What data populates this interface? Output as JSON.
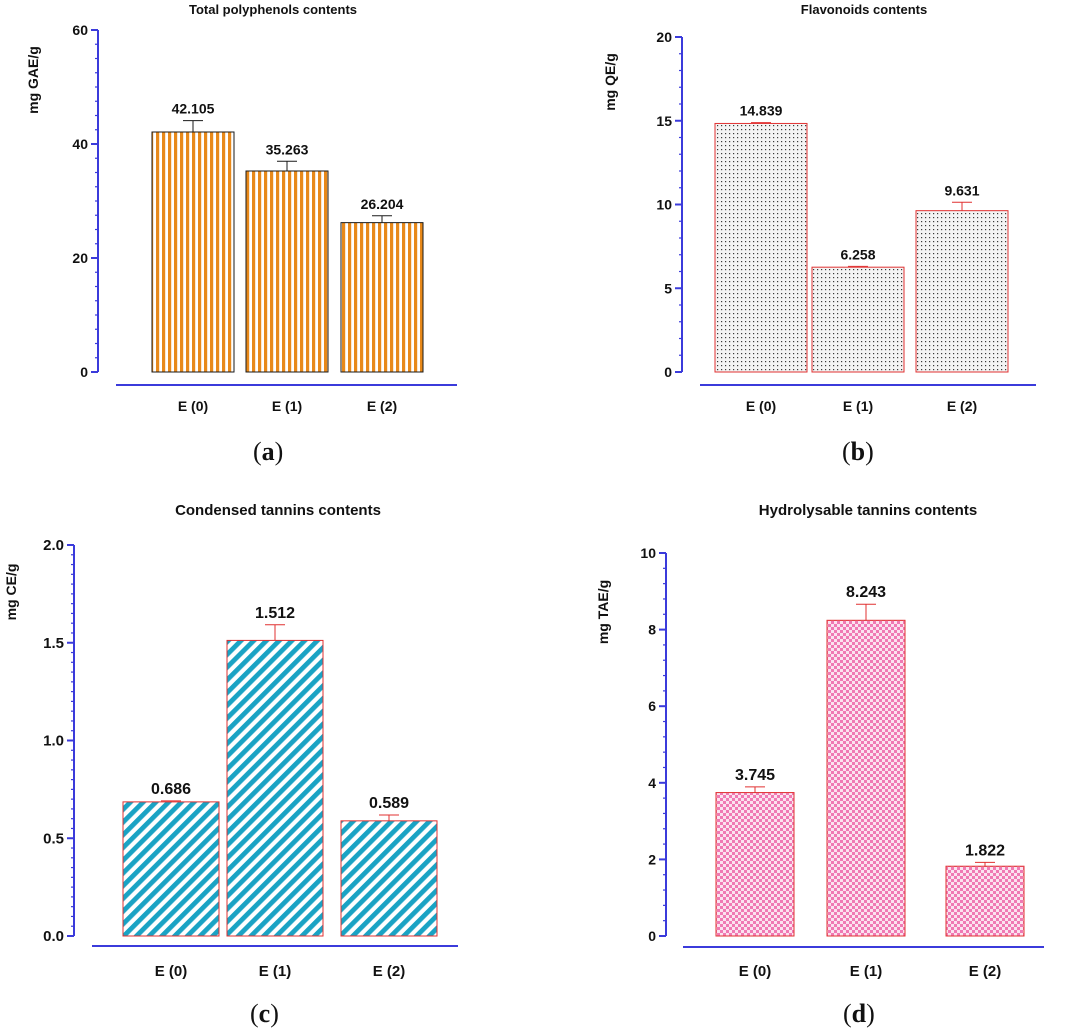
{
  "chart_data": [
    {
      "type": "bar",
      "panel": "(a)",
      "title": "Total polyphenols contents",
      "ylabel": "mg GAE/g",
      "xlabel": "",
      "categories": [
        "E (0)",
        "E (1)",
        "E (2)"
      ],
      "values": [
        42.105,
        35.263,
        26.204
      ],
      "value_labels": [
        "42.105",
        "35.263",
        "26.204"
      ],
      "errors": [
        2.0,
        1.7,
        1.2
      ],
      "ylim": [
        0,
        60
      ],
      "yticks": [
        0,
        20,
        40,
        60
      ],
      "ytick_labels": [
        "0",
        "20",
        "40",
        "60"
      ],
      "grid": false,
      "pattern": "vertical-stripes",
      "colors": {
        "fill": "#E8891A",
        "edge": "#1a1a1a",
        "axis": "#3b3bdb",
        "error": "#1a1a1a"
      }
    },
    {
      "type": "bar",
      "panel": "(b)",
      "title": "Flavonoids contents",
      "ylabel": "mg QE/g",
      "xlabel": "",
      "categories": [
        "E (0)",
        "E (1)",
        "E (2)"
      ],
      "values": [
        14.839,
        6.258,
        9.631
      ],
      "value_labels": [
        "14.839",
        "6.258",
        "9.631"
      ],
      "errors": [
        0.05,
        0.05,
        0.5
      ],
      "ylim": [
        0,
        20
      ],
      "yticks": [
        0,
        5,
        10,
        15,
        20
      ],
      "ytick_labels": [
        "0",
        "5",
        "10",
        "15",
        "20"
      ],
      "grid": false,
      "pattern": "dots",
      "colors": {
        "fill": "#444444",
        "edge": "#e03030",
        "axis": "#3b3bdb",
        "error": "#e03030"
      }
    },
    {
      "type": "bar",
      "panel": "(c)",
      "title": "Condensed tannins contents",
      "ylabel": "mg CE/g",
      "xlabel": "",
      "categories": [
        "E (0)",
        "E (1)",
        "E (2)"
      ],
      "values": [
        0.686,
        1.512,
        0.589
      ],
      "value_labels": [
        "0.686",
        "1.512",
        "0.589"
      ],
      "errors": [
        0.005,
        0.08,
        0.03
      ],
      "ylim": [
        0,
        2.0
      ],
      "yticks": [
        0,
        0.5,
        1.0,
        1.5,
        2.0
      ],
      "ytick_labels": [
        "0.0",
        "0.5",
        "1.0",
        "1.5",
        "2.0"
      ],
      "grid": false,
      "pattern": "diagonal-stripes",
      "colors": {
        "fill": "#1aa3c4",
        "edge": "#e03030",
        "axis": "#3b3bdb",
        "error": "#e03030"
      }
    },
    {
      "type": "bar",
      "panel": "(d)",
      "title": "Hydrolysable tannins contents",
      "ylabel": "mg TAE/g",
      "xlabel": "",
      "categories": [
        "E (0)",
        "E (1)",
        "E (2)"
      ],
      "values": [
        3.745,
        8.243,
        1.822
      ],
      "value_labels": [
        "3.745",
        "8.243",
        "1.822"
      ],
      "errors": [
        0.15,
        0.42,
        0.1
      ],
      "ylim": [
        0,
        10
      ],
      "yticks": [
        0,
        2,
        4,
        6,
        8,
        10
      ],
      "ytick_labels": [
        "0",
        "2",
        "4",
        "6",
        "8",
        "10"
      ],
      "grid": false,
      "pattern": "checker",
      "colors": {
        "fill": "#f07ab4",
        "edge": "#e03030",
        "axis": "#3b3bdb",
        "error": "#e03030"
      }
    }
  ]
}
